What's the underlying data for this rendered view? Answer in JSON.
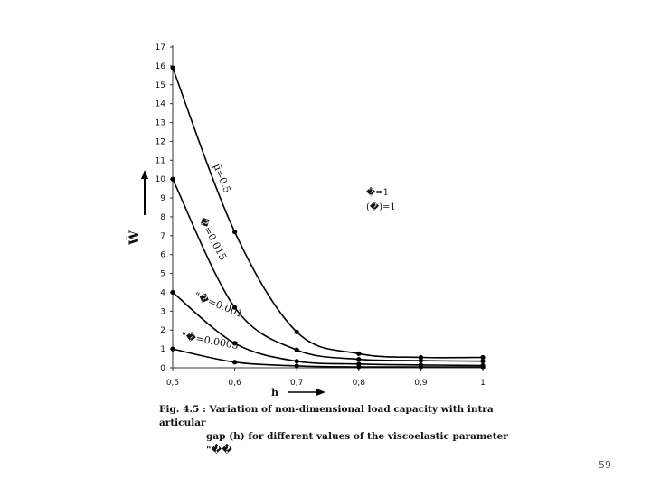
{
  "chart_data": {
    "type": "line",
    "title": "",
    "xlabel": "h",
    "ylabel": "W̄",
    "xlim": [
      0.5,
      1.0
    ],
    "ylim": [
      0,
      17
    ],
    "x_ticks": [
      "0,5",
      "0,6",
      "0,7",
      "0,8",
      "0,9",
      "1"
    ],
    "y_ticks": [
      "0",
      "1",
      "2",
      "3",
      "4",
      "5",
      "6",
      "7",
      "8",
      "9",
      "10",
      "11",
      "12",
      "13",
      "14",
      "15",
      "16",
      "17"
    ],
    "x": [
      0.5,
      0.6,
      0.7,
      0.8,
      0.9,
      1.0
    ],
    "grid": false,
    "legend": "none",
    "series": [
      {
        "name": "μ̄=0.5",
        "label_glyph": "5",
        "values": [
          15.9,
          7.2,
          1.9,
          0.75,
          0.55,
          0.55
        ]
      },
      {
        "name": "",
        "values": [
          10.0,
          3.2,
          0.95,
          0.45,
          0.38,
          0.35
        ]
      },
      {
        "name": "",
        "values": [
          4.0,
          1.3,
          0.35,
          0.2,
          0.15,
          0.12
        ]
      },
      {
        "name": "",
        "values": [
          1.0,
          0.3,
          0.1,
          0.05,
          0.05,
          0.05
        ]
      }
    ],
    "annotations": [
      {
        "text": "μ̄=0.5",
        "series": 0
      },
      {
        "text": "�=0.015",
        "series": 1
      },
      {
        "text": "\"�=0.001",
        "series": 2
      },
      {
        "text": "\"�=0.0005",
        "series": 3
      },
      {
        "text": "�=1",
        "note": "parameter block"
      },
      {
        "text": "(�)=1",
        "note": "parameter block"
      }
    ],
    "y_arrow": "up",
    "x_arrow": "right"
  },
  "caption": {
    "line1": "Fig. 4.5 : Variation of non-dimensional load capacity with intra articular",
    "line2": "gap (h) for different values of the viscoelastic parameter \"��"
  },
  "page_number": "59"
}
